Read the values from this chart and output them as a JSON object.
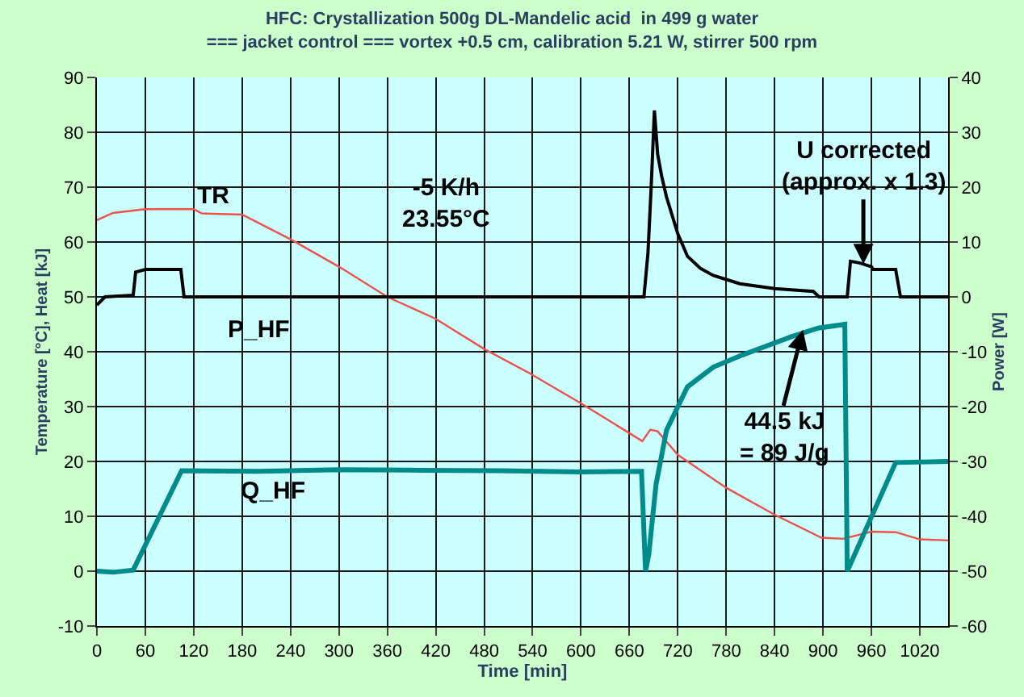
{
  "chart_data": {
    "type": "line",
    "title": "HFC: Crystallization 500g DL-Mandelic acid  in 499 g water",
    "subtitle": "=== jacket control === vortex +0.5 cm, calibration 5.21 W, stirrer 500 rpm",
    "xlabel": "Time [min]",
    "ylabel": "Temperature [°C], Heat [kJ]",
    "y2label": "Power [W]",
    "xlim": [
      0,
      1055
    ],
    "xticks": [
      0,
      60,
      120,
      180,
      240,
      300,
      360,
      420,
      480,
      540,
      600,
      660,
      720,
      780,
      840,
      900,
      960,
      1020
    ],
    "ylim": [
      -10,
      90
    ],
    "yticks": [
      -10,
      0,
      10,
      20,
      30,
      40,
      50,
      60,
      70,
      80,
      90
    ],
    "y2lim": [
      -60,
      40
    ],
    "y2ticks": [
      -60,
      -50,
      -40,
      -30,
      -20,
      -10,
      0,
      10,
      20,
      30,
      40
    ],
    "grid": true,
    "legend": false,
    "marker": "none",
    "line_style": "solid",
    "series": [
      {
        "color": "#e8534a",
        "x": [
          0,
          20,
          60,
          120,
          130,
          180,
          240,
          300,
          360,
          420,
          480,
          536,
          600,
          676,
          686,
          695,
          720,
          780,
          840,
          898,
          925,
          960,
          990,
          1020,
          1055
        ],
        "values": [
          64,
          65.3,
          66,
          66,
          65.2,
          65,
          60.5,
          55.5,
          50,
          46,
          40.5,
          36.1,
          30.6,
          23.7,
          25.8,
          25.5,
          21.2,
          15.2,
          10.3,
          6.1,
          5.9,
          7.2,
          7.1,
          5.8,
          5.6
        ]
      },
      {
        "color": "#000000",
        "axis": "y2",
        "x": [
          0,
          10,
          45,
          48,
          60,
          104,
          108,
          400,
          678,
          683,
          687,
          691,
          695,
          700,
          706,
          720,
          732,
          748,
          764,
          797,
          840,
          888,
          895,
          930,
          934,
          945,
          960,
          962,
          990,
          996,
          1055
        ],
        "values": [
          -1.5,
          0,
          0.3,
          4.5,
          5,
          5,
          0,
          0,
          0,
          8,
          20,
          34,
          26,
          22,
          18.2,
          11.5,
          7.4,
          5.2,
          3.9,
          2.4,
          1.5,
          1.0,
          0,
          0,
          6.5,
          6.2,
          5.5,
          5,
          5,
          0,
          0
        ]
      },
      {
        "color": "#008b8b",
        "x": [
          0,
          20,
          45,
          105,
          200,
          300,
          400,
          500,
          600,
          675,
          680,
          684,
          693,
          706,
          732,
          764,
          800,
          829,
          860,
          894,
          927,
          930,
          990,
          1055
        ],
        "values": [
          0,
          -0.2,
          0.2,
          18.3,
          18.2,
          18.5,
          18.4,
          18.3,
          18.1,
          18.2,
          0,
          3,
          15.8,
          25.7,
          33.6,
          37.2,
          39.4,
          41,
          42.7,
          44.3,
          45,
          0,
          19.8,
          20
        ]
      }
    ],
    "annotations": [
      "TR",
      "P_HF",
      "Q_HF",
      "-5 K/h\n23.55°C",
      {
        "text": "U corrected\n(approx. x 1.3)",
        "x": 950,
        "y": 56
      },
      {
        "text": "44.5 kJ\n= 89 J/g",
        "x": 875,
        "y": 44
      }
    ]
  }
}
